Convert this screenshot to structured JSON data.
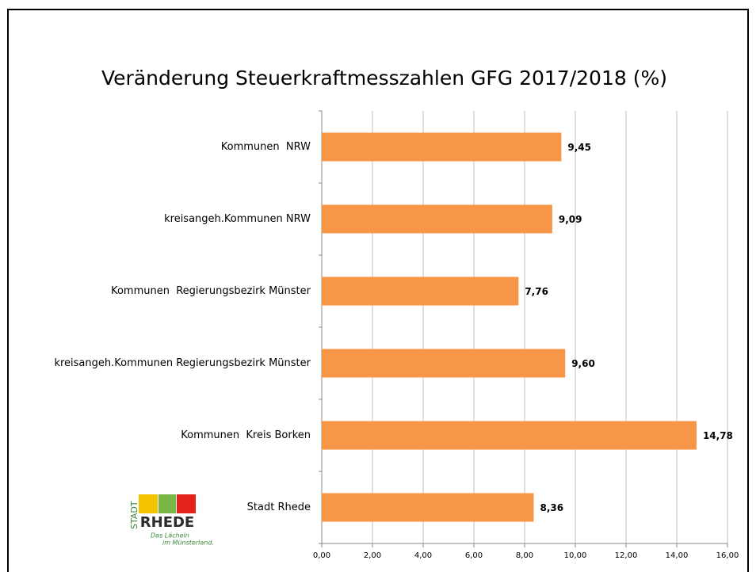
{
  "chart_data": {
    "type": "barh",
    "title": "Veränderung Steuerkraftmesszahlen GFG 2017/2018 (%)",
    "categories": [
      "Kommunen  NRW",
      "kreisangeh.Kommunen NRW",
      "Kommunen  Regierungsbezirk Münster",
      "kreisangeh.Kommunen Regierungsbezirk Münster",
      "Kommunen  Kreis Borken",
      "Stadt Rhede"
    ],
    "values": [
      9.45,
      9.09,
      7.76,
      9.6,
      14.78,
      8.36
    ],
    "value_labels": [
      "9,45",
      "9,09",
      "7,76",
      "9,60",
      "14,78",
      "8,36"
    ],
    "color": "#f79646",
    "xlim": [
      0,
      16
    ],
    "xticks": [
      {
        "value": 0,
        "label": "0,00"
      },
      {
        "value": 2,
        "label": "2,00"
      },
      {
        "value": 4,
        "label": "4,00"
      },
      {
        "value": 6,
        "label": "6,00"
      },
      {
        "value": 8,
        "label": "8,00"
      },
      {
        "value": 10,
        "label": "10,00"
      },
      {
        "value": 12,
        "label": "12,00"
      },
      {
        "value": 14,
        "label": "14,00"
      },
      {
        "value": 16,
        "label": "16,00"
      }
    ],
    "grid": true
  },
  "logo": {
    "top": "STADT",
    "name": "RHEDE",
    "slogan1": "Das Lächeln",
    "slogan2": "im Münsterland."
  }
}
